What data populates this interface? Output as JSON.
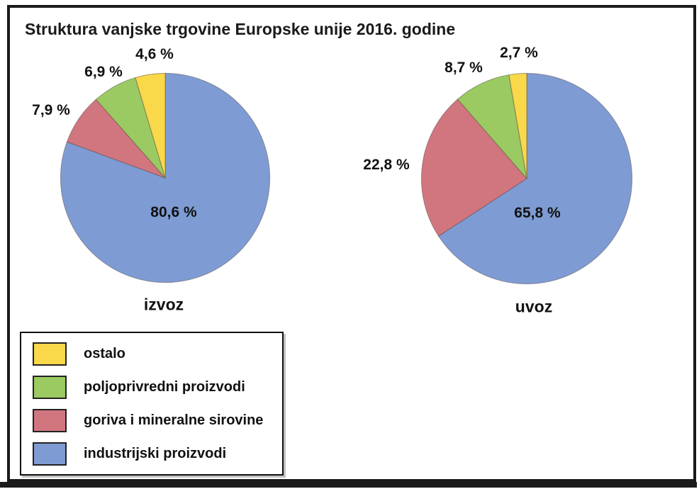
{
  "title": "Struktura vanjske trgovine Europske unije 2016. godine",
  "colors": {
    "ostalo": "#F9D84A",
    "poljoprivredni_proizvodi": "#9ACA61",
    "goriva_i_mineralne_sirovine": "#D1767F",
    "industrijski_proizvodi": "#7E9CD3",
    "frame": "#1b1b1b",
    "text": "#111111"
  },
  "legend": {
    "items": [
      {
        "label": "ostalo",
        "color": "#F9D84A"
      },
      {
        "label": "poljoprivredni proizvodi",
        "color": "#9ACA61"
      },
      {
        "label": "goriva i mineralne sirovine",
        "color": "#D1767F"
      },
      {
        "label": "industrijski proizvodi",
        "color": "#7E9CD3"
      }
    ]
  },
  "chart_data": [
    {
      "type": "pie",
      "title": "izvoz",
      "start_angle_deg": 0,
      "direction": "clockwise",
      "slices": [
        {
          "name": "industrijski proizvodi",
          "value": 80.6,
          "label": "80,6 %",
          "color": "#7E9CD3"
        },
        {
          "name": "goriva i mineralne sirovine",
          "value": 7.9,
          "label": "7,9 %",
          "color": "#D1767F"
        },
        {
          "name": "poljoprivredni proizvodi",
          "value": 6.9,
          "label": "6,9 %",
          "color": "#9ACA61"
        },
        {
          "name": "ostalo",
          "value": 4.6,
          "label": "4,6 %",
          "color": "#F9D84A"
        }
      ]
    },
    {
      "type": "pie",
      "title": "uvoz",
      "start_angle_deg": 0,
      "direction": "clockwise",
      "slices": [
        {
          "name": "industrijski proizvodi",
          "value": 65.8,
          "label": "65,8 %",
          "color": "#7E9CD3"
        },
        {
          "name": "goriva i mineralne sirovine",
          "value": 22.8,
          "label": "22,8 %",
          "color": "#D1767F"
        },
        {
          "name": "poljoprivredni proizvodi",
          "value": 8.7,
          "label": "8,7 %",
          "color": "#9ACA61"
        },
        {
          "name": "ostalo",
          "value": 2.7,
          "label": "2,7 %",
          "color": "#F9D84A"
        }
      ]
    }
  ]
}
